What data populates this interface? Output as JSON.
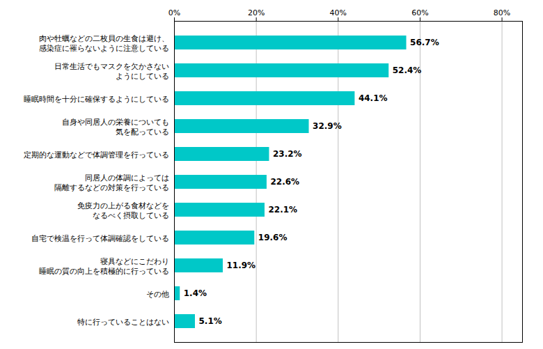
{
  "chart_data": {
    "type": "bar",
    "orientation": "horizontal",
    "categories": [
      "肉や牡蠣などの二枚貝の生食は避け、\n感染症に罹らないように注意している",
      "日常生活でもマスクを欠かさない\nようにしている",
      "睡眠時間を十分に確保するようにしている",
      "自身や同居人の栄養についても\n気を配っている",
      "定期的な運動などで体調管理を行っている",
      "同居人の体調によっては\n隔離するなどの対策を行っている",
      "免疫力の上がる食材などを\nなるべく摂取している",
      "自宅で検温を行って体調確認をしている",
      "寝具などにこだわり\n睡眠の質の向上を積極的に行っている",
      "その他",
      "特に行っていることはない"
    ],
    "values": [
      56.7,
      52.4,
      44.1,
      32.9,
      23.2,
      22.6,
      22.1,
      19.6,
      11.9,
      1.4,
      5.1
    ],
    "value_labels": [
      "56.7%",
      "52.4%",
      "44.1%",
      "32.9%",
      "23.2%",
      "22.6%",
      "22.1%",
      "19.6%",
      "11.9%",
      "1.4%",
      "5.1%"
    ],
    "data_labels": true,
    "color": "#00C8C8",
    "xlim": [
      0,
      85
    ],
    "xticks": [
      {
        "value": 0,
        "label": "0%"
      },
      {
        "value": 20,
        "label": "20%"
      },
      {
        "value": 40,
        "label": "40%"
      },
      {
        "value": 60,
        "label": "60%"
      },
      {
        "value": 80,
        "label": "80%"
      }
    ],
    "grid": true
  }
}
